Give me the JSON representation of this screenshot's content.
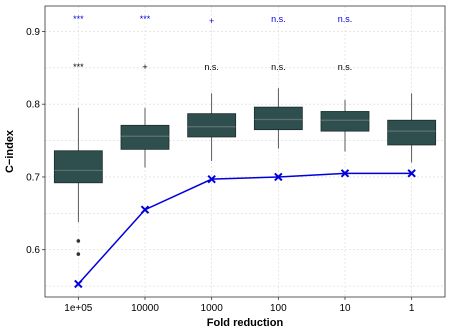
{
  "chart_data": {
    "type": "boxplot-with-line",
    "xlabel": "Fold reduction",
    "ylabel": "C−index",
    "categories": [
      "1e+05",
      "10000",
      "1000",
      "100",
      "10",
      "1"
    ],
    "ylim": [
      0.535,
      0.935
    ],
    "yticks": [
      0.6,
      0.7,
      0.8,
      0.9
    ],
    "grid": true,
    "boxes": [
      {
        "category": "1e+05",
        "whisker_low": 0.638,
        "q1": 0.692,
        "median": 0.709,
        "q3": 0.736,
        "whisker_high": 0.795,
        "outliers": [
          0.612,
          0.594
        ]
      },
      {
        "category": "10000",
        "whisker_low": 0.713,
        "q1": 0.738,
        "median": 0.756,
        "q3": 0.771,
        "whisker_high": 0.795,
        "outliers": []
      },
      {
        "category": "1000",
        "whisker_low": 0.722,
        "q1": 0.755,
        "median": 0.769,
        "q3": 0.787,
        "whisker_high": 0.815,
        "outliers": []
      },
      {
        "category": "100",
        "whisker_low": 0.739,
        "q1": 0.765,
        "median": 0.779,
        "q3": 0.796,
        "whisker_high": 0.822,
        "outliers": []
      },
      {
        "category": "10",
        "whisker_low": 0.735,
        "q1": 0.763,
        "median": 0.778,
        "q3": 0.79,
        "whisker_high": 0.806,
        "outliers": []
      },
      {
        "category": "1",
        "whisker_low": 0.72,
        "q1": 0.744,
        "median": 0.763,
        "q3": 0.778,
        "whisker_high": 0.815,
        "outliers": []
      }
    ],
    "series": [
      {
        "values": [
          0.553,
          0.655,
          0.697,
          0.7,
          0.705,
          0.705
        ],
        "color": "#0000dd",
        "marker": "x"
      }
    ],
    "annotations_top": [
      {
        "category": "1e+05",
        "text": "***",
        "color": "#0000dd"
      },
      {
        "category": "10000",
        "text": "***",
        "color": "#0000dd"
      },
      {
        "category": "1000",
        "text": "+",
        "color": "#0000dd"
      },
      {
        "category": "100",
        "text": "n.s.",
        "color": "#0000dd"
      },
      {
        "category": "10",
        "text": "n.s.",
        "color": "#0000dd"
      }
    ],
    "annotations_mid": [
      {
        "category": "1e+05",
        "text": "***",
        "color": "#000000"
      },
      {
        "category": "10000",
        "text": "+",
        "color": "#000000"
      },
      {
        "category": "1000",
        "text": "n.s.",
        "color": "#000000"
      },
      {
        "category": "100",
        "text": "n.s.",
        "color": "#000000"
      },
      {
        "category": "10",
        "text": "n.s.",
        "color": "#000000"
      }
    ],
    "box_fill": "#2f4f4f",
    "box_stroke": "#1a2a2a",
    "median_color": "#607070"
  }
}
